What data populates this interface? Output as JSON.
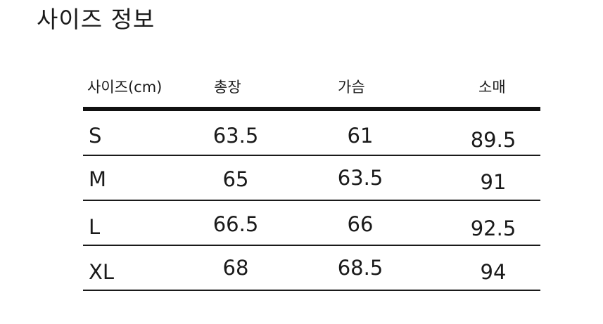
{
  "title": "사이즈 정보",
  "table": {
    "headers": [
      "사이즈(cm)",
      "총장",
      "가슴",
      "소매"
    ],
    "rows": [
      {
        "size": "S",
        "length": "63.5",
        "chest": "61",
        "sleeve": "89.5"
      },
      {
        "size": "M",
        "length": "65",
        "chest": "63.5",
        "sleeve": "91"
      },
      {
        "size": "L",
        "length": "66.5",
        "chest": "66",
        "sleeve": "92.5"
      },
      {
        "size": "XL",
        "length": "68",
        "chest": "68.5",
        "sleeve": "94"
      }
    ]
  }
}
